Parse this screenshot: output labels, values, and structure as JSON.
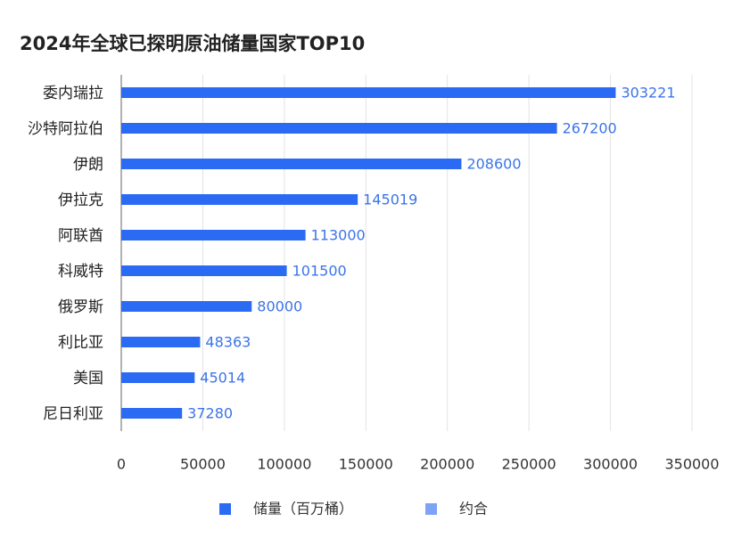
{
  "chart_data": {
    "type": "hbar",
    "title": "2024年全球已探明原油储量国家TOP10",
    "categories": [
      "委内瑞拉",
      "沙特阿拉伯",
      "伊朗",
      "伊拉克",
      "阿联酋",
      "科威特",
      "俄罗斯",
      "利比亚",
      "美国",
      "尼日利亚"
    ],
    "series": [
      {
        "name": "储量（百万桶）",
        "color": "#2b6bf3",
        "values": [
          303221,
          267200,
          208600,
          145019,
          113000,
          101500,
          80000,
          48363,
          45014,
          37280
        ]
      },
      {
        "name": "约合",
        "color": "#7ea3f6",
        "values": [
          null,
          null,
          null,
          null,
          null,
          null,
          null,
          null,
          null,
          null
        ]
      }
    ],
    "xlim": [
      0,
      350000
    ],
    "xticks": [
      0,
      50000,
      100000,
      150000,
      200000,
      250000,
      300000,
      350000
    ],
    "grid": true
  }
}
